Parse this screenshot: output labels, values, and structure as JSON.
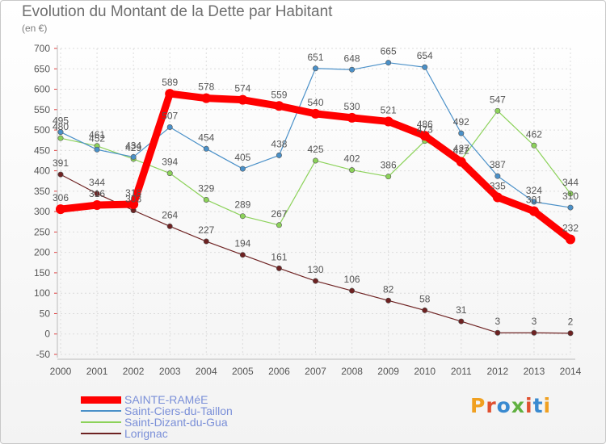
{
  "title": "Evolution du Montant de la Dette par Habitant",
  "unit": "(en €)",
  "logo": "Proxiti",
  "chart_data": {
    "type": "line",
    "x": [
      "2000",
      "2001",
      "2002",
      "2003",
      "2004",
      "2005",
      "2006",
      "2007",
      "2008",
      "2009",
      "2010",
      "2011",
      "2012",
      "2013",
      "2014"
    ],
    "ylim": [
      -50,
      700
    ],
    "yticks": [
      -50,
      0,
      50,
      100,
      150,
      200,
      250,
      300,
      350,
      400,
      450,
      500,
      550,
      600,
      650,
      700
    ],
    "grid": true,
    "legend_position": "bottom-left",
    "series": [
      {
        "name": "SAINTE-RAMéE",
        "color": "#ff0000",
        "values": [
          306,
          316,
          318,
          589,
          578,
          574,
          559,
          540,
          530,
          521,
          486,
          422,
          335,
          301,
          232
        ]
      },
      {
        "name": "Saint-Ciers-du-Taillon",
        "color": "#4a90c8",
        "values": [
          495,
          452,
          434,
          507,
          454,
          405,
          438,
          651,
          648,
          665,
          654,
          492,
          387,
          324,
          310
        ]
      },
      {
        "name": "Saint-Dizant-du-Gua",
        "color": "#8cd25a",
        "values": [
          480,
          461,
          429,
          394,
          329,
          289,
          267,
          425,
          402,
          386,
          473,
          427,
          547,
          462,
          344
        ]
      },
      {
        "name": "Lorignac",
        "color": "#6e2222",
        "values": [
          391,
          344,
          303,
          264,
          227,
          194,
          161,
          130,
          106,
          82,
          58,
          31,
          3,
          3,
          2
        ]
      }
    ]
  },
  "logo_colors": [
    "#f0a020",
    "#e05030",
    "#3a8ad0",
    "#60b040",
    "#e05030",
    "#3a8ad0",
    "#f0a020"
  ]
}
